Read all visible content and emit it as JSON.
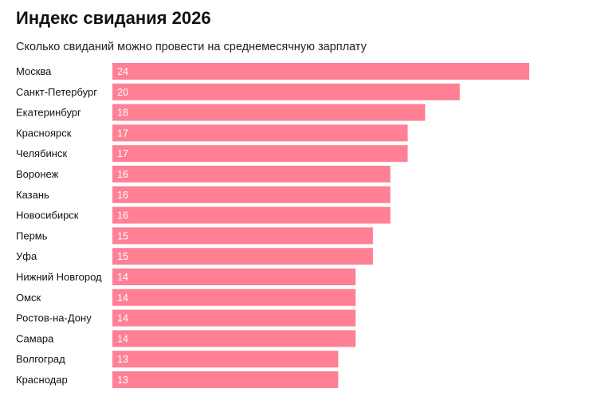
{
  "chart_data": {
    "type": "bar",
    "orientation": "horizontal",
    "title": "Индекс свидания 2026",
    "subtitle": "Сколько свиданий можно провести на среднемесячную зарплату",
    "xlabel": "",
    "ylabel": "",
    "categories": [
      "Москва",
      "Санкт-Петербург",
      "Екатеринбург",
      "Красноярск",
      "Челябинск",
      "Воронеж",
      "Казань",
      "Новосибирск",
      "Пермь",
      "Уфа",
      "Нижний Новгород",
      "Омск",
      "Ростов-на-Дону",
      "Самара",
      "Волгоград",
      "Краснодар"
    ],
    "values": [
      24,
      20,
      18,
      17,
      17,
      16,
      16,
      16,
      15,
      15,
      14,
      14,
      14,
      14,
      13,
      13
    ],
    "xlim": [
      0,
      24
    ],
    "data_labels": true,
    "grid": false,
    "legend": "none",
    "bar_color": "#ff8095",
    "label_color": "#ffffff"
  }
}
